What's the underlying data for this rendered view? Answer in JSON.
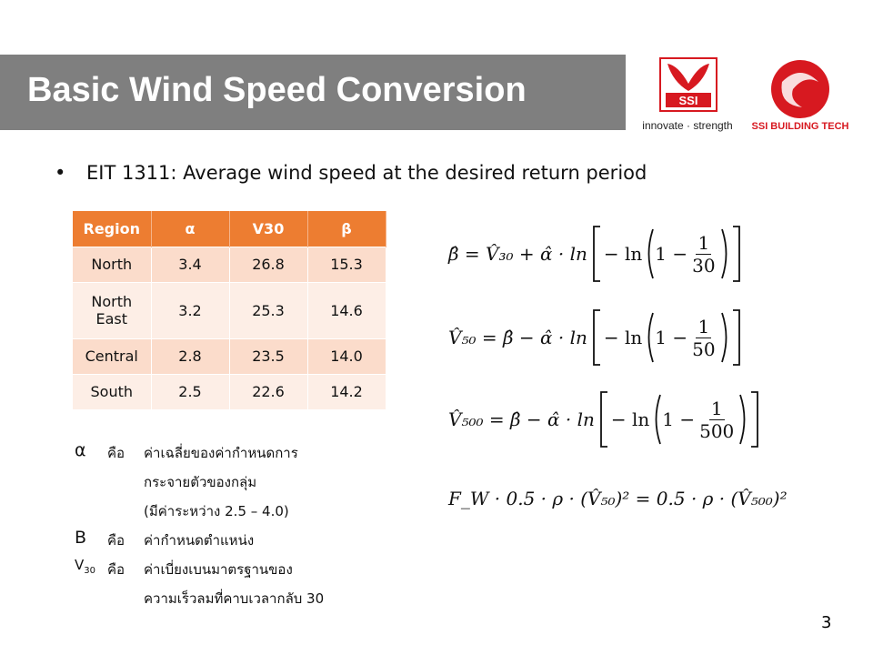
{
  "header": {
    "title": "Basic Wind Speed Conversion",
    "logo_left": {
      "mark": "SSI",
      "tagline": "innovate · strength"
    },
    "logo_right": {
      "name": "SSI BUILDING TECH"
    }
  },
  "bullet": "EIT 1311: Average wind speed at the desired return period",
  "table": {
    "header": [
      "Region",
      "α",
      "V30",
      "β"
    ],
    "rows": [
      [
        "North",
        "3.4",
        "26.8",
        "15.3"
      ],
      [
        "North East",
        "3.2",
        "25.3",
        "14.6"
      ],
      [
        "Central",
        "2.8",
        "23.5",
        "14.0"
      ],
      [
        "South",
        "2.5",
        "22.6",
        "14.2"
      ]
    ]
  },
  "definitions": [
    {
      "symbol": "α",
      "is": "คือ",
      "lines": [
        "ค่าเฉลี่ยของค่ากำหนดการ",
        "กระจายตัวของกลุ่ม",
        "(มีค่าระหว่าง 2.5 – 4.0)"
      ]
    },
    {
      "symbol": "B",
      "is": "คือ",
      "lines": [
        "ค่ากำหนดตำแหน่ง"
      ]
    },
    {
      "symbol": "V",
      "subscript": "30",
      "is": "คือ",
      "lines": [
        "ค่าเบี่ยงเบนมาตรฐานของ",
        "ความเร็วลมที่คาบเวลากลับ 30"
      ]
    }
  ],
  "equations": [
    {
      "lhs": "β̂ = V̂₃₀ + α̂ · ln",
      "inner": "− ln",
      "one": "1 −",
      "numerator": "1",
      "denominator": "30"
    },
    {
      "lhs": "V̂₅₀ = β̂ − α̂ · ln",
      "inner": "− ln",
      "one": "1 −",
      "numerator": "1",
      "denominator": "50"
    },
    {
      "lhs": "V̂₅₀₀ = β̂ − α̂ · ln",
      "inner": "− ln",
      "one": "1 −",
      "numerator": "1",
      "denominator": "500"
    }
  ],
  "final_equation": "F_W · 0.5 · ρ · (V̂₅₀)² = 0.5 · ρ · (V̂₅₀₀)²",
  "page_number": "3"
}
